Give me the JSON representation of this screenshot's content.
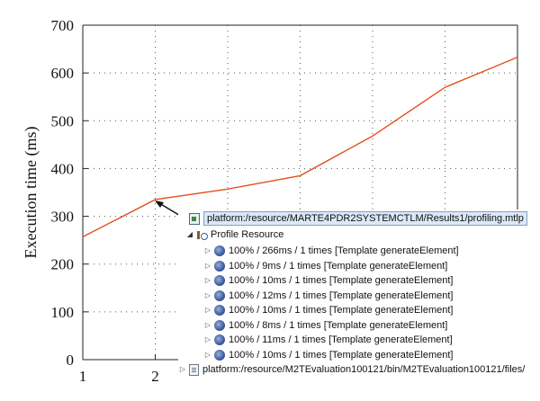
{
  "chart_data": {
    "type": "line",
    "x": [
      1,
      2,
      3,
      4,
      5,
      6,
      7
    ],
    "series": [
      {
        "values": [
          257,
          335,
          357,
          385,
          468,
          570,
          633
        ]
      }
    ],
    "xticks": [
      "1",
      "2"
    ],
    "yticks": [
      "0",
      "100",
      "200",
      "300",
      "400",
      "500",
      "600",
      "700"
    ],
    "xlabel": "",
    "ylabel": "Execution time (ms)",
    "xlim": [
      1,
      7
    ],
    "ylim": [
      0,
      700
    ],
    "grid": "dotted",
    "line_color": "#e2501c"
  },
  "tree": {
    "root_label": "platform:/resource/MARTE4PDR2SYSTEMCTLM/Results1/profiling.mtlp",
    "profile_label": "Profile Resource",
    "items": [
      "100% / 266ms / 1 times [Template generateElement]",
      "100% / 9ms / 1 times [Template generateElement]",
      "100% / 10ms / 1 times [Template generateElement]",
      "100% / 12ms / 1 times [Template generateElement]",
      "100% / 10ms / 1 times [Template generateElement]",
      "100% / 8ms / 1 times [Template generateElement]",
      "100% / 11ms / 1 times [Template generateElement]",
      "100% / 10ms / 1 times [Template generateElement]"
    ],
    "footer_label": "platform:/resource/M2TEvaluation100121/bin/M2TEvaluation100121/files/"
  }
}
